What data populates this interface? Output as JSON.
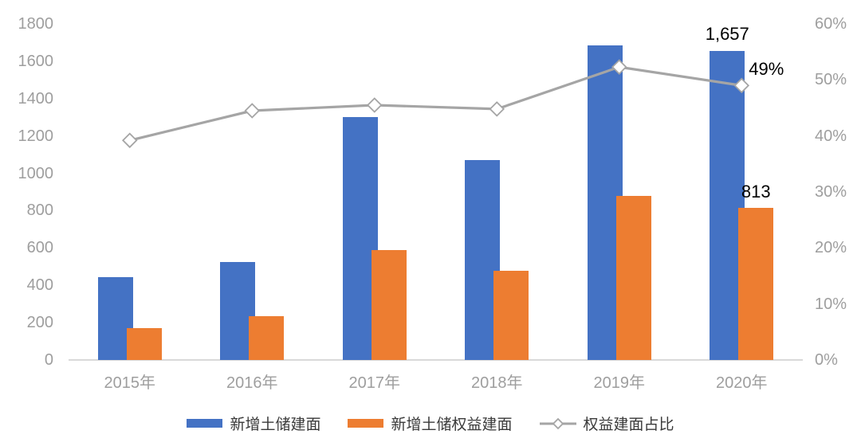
{
  "chart_data": {
    "type": "bar",
    "subtype": "grouped-bars-with-secondary-axis-line-combo",
    "title": "",
    "categories": [
      "2015年",
      "2016年",
      "2017年",
      "2018年",
      "2019年",
      "2020年"
    ],
    "series": [
      {
        "name": "新增土储建面",
        "type": "bar",
        "axis": "left",
        "color": "#4472C4",
        "values": [
          442,
          525,
          1300,
          1070,
          1684,
          1657
        ]
      },
      {
        "name": "新增土储权益建面",
        "type": "bar",
        "axis": "left",
        "color": "#ED7D31",
        "values": [
          171,
          235,
          589,
          478,
          880,
          813
        ]
      },
      {
        "name": "权益建面占比",
        "type": "line",
        "axis": "right",
        "color": "#A5A5A5",
        "marker": "diamond-white-fill",
        "unit": "%",
        "values": [
          39.2,
          44.5,
          45.5,
          44.8,
          52.3,
          49.0
        ]
      }
    ],
    "left_axis": {
      "min": 0,
      "max": 1800,
      "step": 200,
      "tick_labels": [
        "0",
        "200",
        "400",
        "600",
        "800",
        "1000",
        "1200",
        "1400",
        "1600",
        "1800"
      ]
    },
    "right_axis": {
      "min": 0,
      "max": 60,
      "step": 10,
      "tick_labels": [
        "0%",
        "10%",
        "20%",
        "30%",
        "40%",
        "50%",
        "60%"
      ]
    },
    "data_labels": [
      {
        "series_index": 0,
        "category_index": 5,
        "text": "1,657"
      },
      {
        "series_index": 1,
        "category_index": 5,
        "text": "813"
      },
      {
        "series_index": 2,
        "category_index": 5,
        "text": "49%"
      }
    ],
    "legend": {
      "position": "bottom",
      "entries": [
        "新增土储建面",
        "新增土储权益建面",
        "权益建面占比"
      ]
    },
    "grid": false,
    "background": "#FFFFFF",
    "axis_text_color": "#9E9E9E",
    "data_label_color": "#000000",
    "axis_line_color": "#D9D9D9"
  }
}
